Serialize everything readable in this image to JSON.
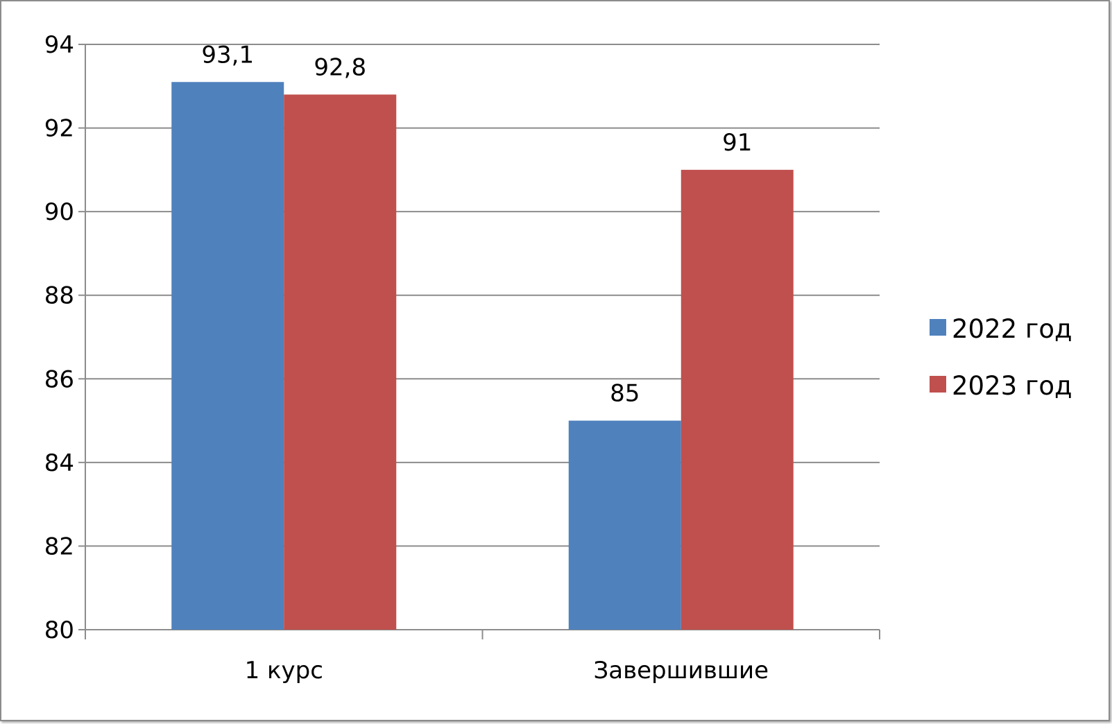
{
  "chart_data": {
    "type": "bar",
    "title": "",
    "xlabel": "",
    "ylabel": "",
    "categories": [
      "1 курс",
      "Завершившие"
    ],
    "series": [
      {
        "name": "2022 год",
        "values": [
          93.1,
          85
        ],
        "labels": [
          "93,1",
          "85"
        ],
        "color": "#4f81bd"
      },
      {
        "name": "2023 год",
        "values": [
          92.8,
          91
        ],
        "labels": [
          "92,8",
          "91"
        ],
        "color": "#c0504d"
      }
    ],
    "ylim": [
      80,
      94
    ],
    "yticks": [
      80,
      82,
      84,
      86,
      88,
      90,
      92,
      94
    ],
    "grid": true,
    "legend": "right"
  }
}
